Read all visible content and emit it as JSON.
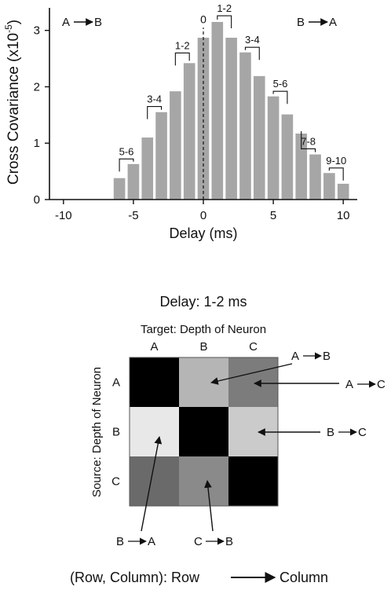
{
  "chart_data": [
    {
      "type": "bar",
      "xlabel": "Delay (ms)",
      "ylabel": "Cross Covariance (x10",
      "ylabel_exponent": "-5",
      "ylabel_close": ")",
      "xlim": [
        -11,
        11
      ],
      "ylim": [
        0,
        3.4
      ],
      "x_ticks": [
        -10,
        -5,
        0,
        5,
        10
      ],
      "x_tick_labels": [
        "-10",
        "-5",
        "0",
        "5",
        "10"
      ],
      "y_ticks": [
        0,
        1,
        2,
        3
      ],
      "y_tick_labels": [
        "0",
        "1",
        "2",
        "3"
      ],
      "bar_color": "#a6a6a6",
      "x": [
        -6,
        -5,
        -4,
        -3,
        -2,
        -1,
        0,
        1,
        2,
        3,
        4,
        5,
        6,
        7,
        8,
        9,
        10
      ],
      "values": [
        0.38,
        0.63,
        1.1,
        1.55,
        1.92,
        2.42,
        2.87,
        3.15,
        2.87,
        2.61,
        2.19,
        1.83,
        1.51,
        1.17,
        0.8,
        0.47,
        0.28
      ],
      "bar_width": 0.82,
      "zero_line_style": "dashed",
      "zero_label": "0",
      "direction_left": {
        "from": "A",
        "to": "B"
      },
      "direction_right": {
        "from": "B",
        "to": "A"
      },
      "brackets": [
        {
          "label": "5-6",
          "from": -6,
          "to": -5,
          "level": 0.72
        },
        {
          "label": "3-4",
          "from": -4,
          "to": -3,
          "level": 1.65
        },
        {
          "label": "1-2",
          "from": -2,
          "to": -1,
          "level": 2.6
        },
        {
          "label": "1-2",
          "from": 1,
          "to": 2,
          "level": 3.26
        },
        {
          "label": "3-4",
          "from": 3,
          "to": 4,
          "level": 2.7
        },
        {
          "label": "5-6",
          "from": 5,
          "to": 6,
          "level": 1.92
        },
        {
          "label": "7-8",
          "from": 7,
          "to": 8,
          "level": 0.9
        },
        {
          "label": "9-10",
          "from": 9,
          "to": 10,
          "level": 0.56
        }
      ]
    },
    {
      "type": "heatmap",
      "title": "Delay: 1-2 ms",
      "column_axis_label": "Target: Depth of Neuron",
      "row_axis_label": "Source: Depth of Neuron",
      "rows": [
        "A",
        "B",
        "C"
      ],
      "columns": [
        "A",
        "B",
        "C"
      ],
      "gray_levels": [
        [
          "#000000",
          "#b5b5b5",
          "#7c7c7c"
        ],
        [
          "#e8e8e8",
          "#000000",
          "#cbcbcb"
        ],
        [
          "#6a6a6a",
          "#8a8a8a",
          "#000000"
        ]
      ],
      "annotations": [
        {
          "from": "A",
          "to": "B",
          "row": 0,
          "col": 1
        },
        {
          "from": "A",
          "to": "C",
          "row": 0,
          "col": 2
        },
        {
          "from": "B",
          "to": "C",
          "row": 1,
          "col": 2
        },
        {
          "from": "B",
          "to": "A",
          "row": 1,
          "col": 0
        },
        {
          "from": "C",
          "to": "B",
          "row": 2,
          "col": 1
        }
      ],
      "caption": {
        "prefix": "(Row, Column): Row",
        "suffix": "Column"
      }
    }
  ]
}
